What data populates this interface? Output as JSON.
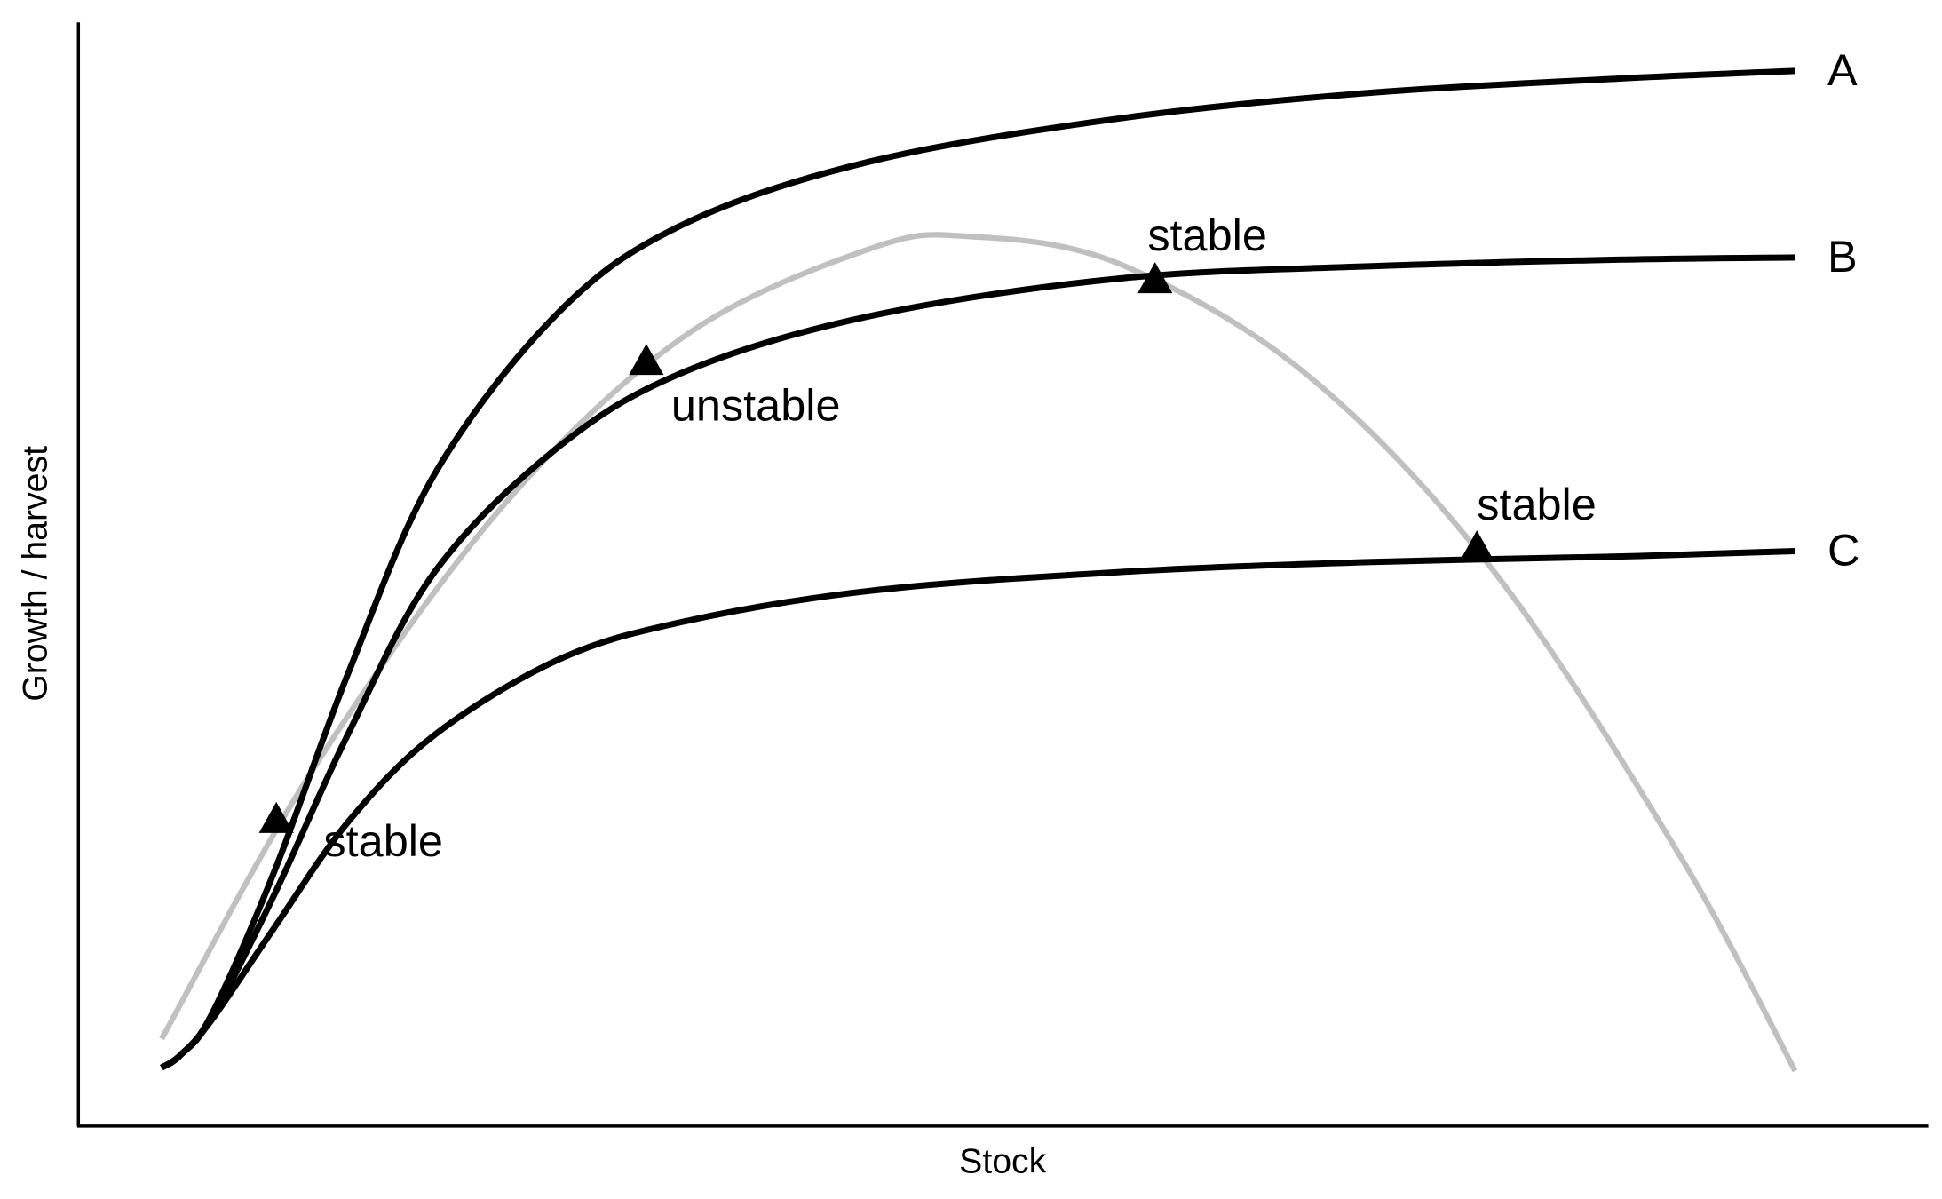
{
  "chart_data": {
    "type": "line",
    "xlabel": "Stock",
    "ylabel": "Growth / harvest",
    "xlim": [
      0,
      100
    ],
    "ylim": [
      0,
      100
    ],
    "series": [
      {
        "color": "#c0c0c0",
        "x": [
          4.5,
          12.6,
          22.7,
          32.7,
          42.8,
          48.2,
          56.3,
          66.4,
          76.5,
          86.5,
          92.8
        ],
        "values": [
          7.9,
          32.1,
          55.7,
          71.5,
          79.5,
          80.6,
          78.1,
          68.1,
          50.3,
          24.7,
          5.0
        ]
      },
      {
        "name": "A",
        "color": "#000000",
        "x": [
          4.5,
          5.5,
          7.2,
          10.6,
          14.6,
          19.3,
          26.0,
          32.7,
          42.8,
          56.3,
          69.7,
          83.2,
          92.8
        ],
        "values": [
          5.3,
          6.4,
          10.1,
          23.1,
          41.1,
          59.2,
          73.8,
          81.7,
          87.4,
          91.3,
          93.6,
          94.9,
          95.6
        ]
      },
      {
        "name": "B",
        "color": "#000000",
        "x": [
          4.5,
          5.5,
          7.2,
          10.6,
          14.6,
          19.3,
          26.0,
          32.7,
          42.8,
          56.3,
          69.7,
          83.2,
          92.8
        ],
        "values": [
          5.3,
          6.4,
          9.8,
          21.0,
          35.6,
          50.3,
          61.6,
          68.3,
          73.4,
          76.8,
          77.9,
          78.5,
          78.7
        ]
      },
      {
        "name": "C",
        "color": "#000000",
        "x": [
          4.5,
          5.5,
          7.2,
          10.6,
          14.6,
          19.3,
          26.0,
          32.7,
          42.8,
          56.3,
          69.7,
          83.2,
          92.8
        ],
        "values": [
          5.3,
          6.4,
          9.6,
          18.0,
          27.6,
          35.5,
          42.3,
          45.7,
          48.5,
          50.2,
          51.1,
          51.6,
          52.1
        ]
      }
    ],
    "points": {
      "x": [
        10.7,
        30.7,
        58.2,
        75.6
      ],
      "values": [
        27.8,
        69.3,
        76.7,
        52.4
      ],
      "labels": [
        "stable",
        "unstable",
        "stable",
        "stable"
      ],
      "color": "#000000"
    }
  }
}
